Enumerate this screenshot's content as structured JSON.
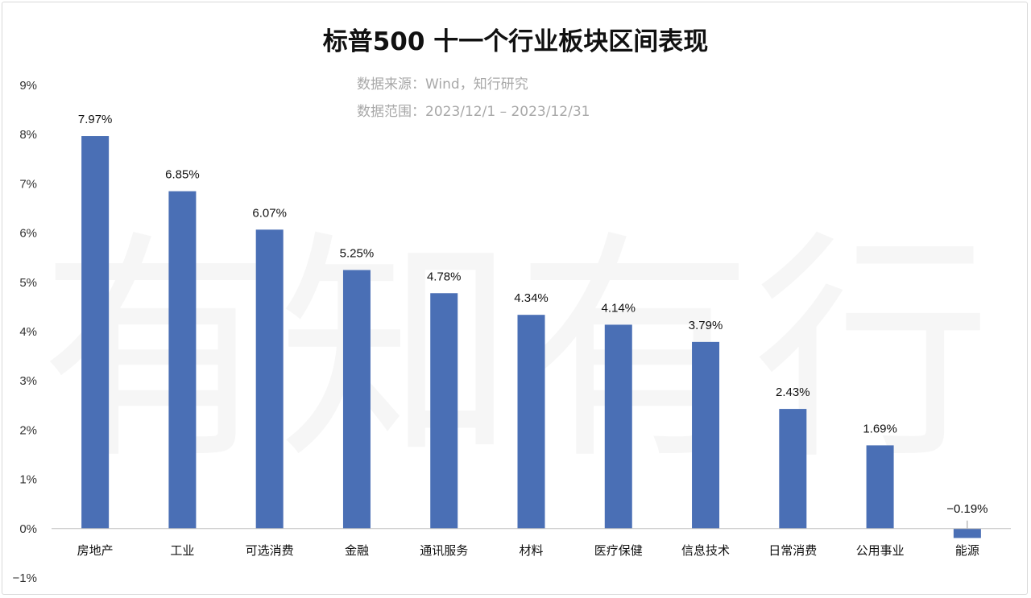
{
  "watermark": "有知有行",
  "chart_data": {
    "type": "bar",
    "title": "标普500 十一个行业板块区间表现",
    "subtitles": [
      "数据来源：Wind，知行研究",
      "数据范围：2023/12/1 – 2023/12/31"
    ],
    "categories": [
      "房地产",
      "工业",
      "可选消费",
      "金融",
      "通讯服务",
      "材料",
      "医疗保健",
      "信息技术",
      "日常消费",
      "公用事业",
      "能源"
    ],
    "values": [
      7.97,
      6.85,
      6.07,
      5.25,
      4.78,
      4.34,
      4.14,
      3.79,
      2.43,
      1.69,
      -0.19
    ],
    "data_labels": [
      "7.97%",
      "6.85%",
      "6.07%",
      "5.25%",
      "4.78%",
      "4.34%",
      "4.14%",
      "3.79%",
      "2.43%",
      "1.69%",
      "−0.19%"
    ],
    "ylim": [
      -1,
      9
    ],
    "yticks": [
      9,
      8,
      7,
      6,
      5,
      4,
      3,
      2,
      1,
      0,
      -1
    ],
    "ytick_labels": [
      "9%",
      "8%",
      "7%",
      "6%",
      "5%",
      "4%",
      "3%",
      "2%",
      "1%",
      "0%",
      "−1%"
    ],
    "xlabel": "",
    "ylabel": "",
    "grid": false,
    "legend": "none",
    "colors": {
      "bar": "#4a6fb5",
      "axis": "#bfbfbf"
    }
  }
}
